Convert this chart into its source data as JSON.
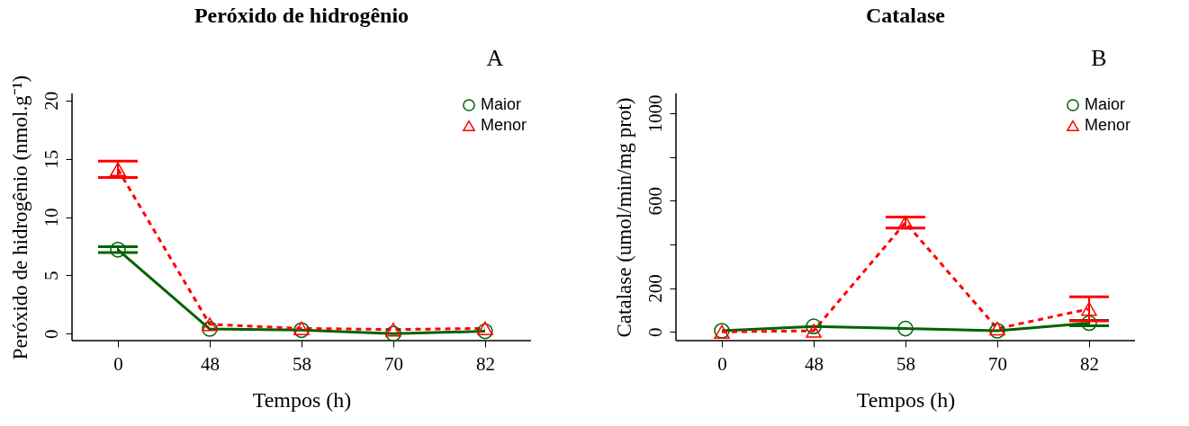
{
  "chart_data": [
    {
      "type": "line",
      "title": "Peróxido de hidrogênio",
      "annotations": [
        "A"
      ],
      "xlabel": "Tempos (h)",
      "ylabel": "Peróxido de hidrogênio (nmol.g⁻¹)",
      "categories": [
        "0",
        "48",
        "58",
        "70",
        "82"
      ],
      "ylim": [
        -0.6,
        20.6
      ],
      "yticks": [
        0,
        5,
        10,
        15,
        20
      ],
      "grid": false,
      "legend": "top right",
      "series": [
        {
          "name": "Maior",
          "color": "#006400",
          "marker": "circle",
          "line_style": "solid",
          "values": [
            7.2,
            0.4,
            0.3,
            0.0,
            0.2
          ],
          "errors": [
            0.25,
            null,
            null,
            null,
            null
          ]
        },
        {
          "name": "Menor",
          "color": "#ff0000",
          "marker": "triangle",
          "line_style": "dashed",
          "values": [
            14.1,
            0.8,
            0.45,
            0.35,
            0.45
          ],
          "errors": [
            0.7,
            null,
            null,
            null,
            null
          ]
        }
      ]
    },
    {
      "type": "line",
      "title": "Catalase",
      "annotations": [
        "B"
      ],
      "xlabel": "Tempos (h)",
      "ylabel": "Catalase (umol/min/mg prot)",
      "categories": [
        "0",
        "48",
        "58",
        "70",
        "82"
      ],
      "ylim": [
        -40,
        1090
      ],
      "yticks": [
        0,
        200,
        {
          "value": 400,
          "label": null
        },
        600,
        {
          "value": 800,
          "label": null
        },
        1000
      ],
      "grid": false,
      "legend": "top right",
      "series": [
        {
          "name": "Maior",
          "color": "#006400",
          "marker": "circle",
          "line_style": "solid",
          "values": [
            5,
            25,
            15,
            5,
            40
          ],
          "errors": [
            null,
            null,
            null,
            null,
            12
          ]
        },
        {
          "name": "Menor",
          "color": "#ff0000",
          "marker": "triangle",
          "line_style": "dashed",
          "values": [
            0,
            5,
            500,
            15,
            105
          ],
          "errors": [
            null,
            null,
            25,
            null,
            55
          ]
        }
      ]
    }
  ]
}
